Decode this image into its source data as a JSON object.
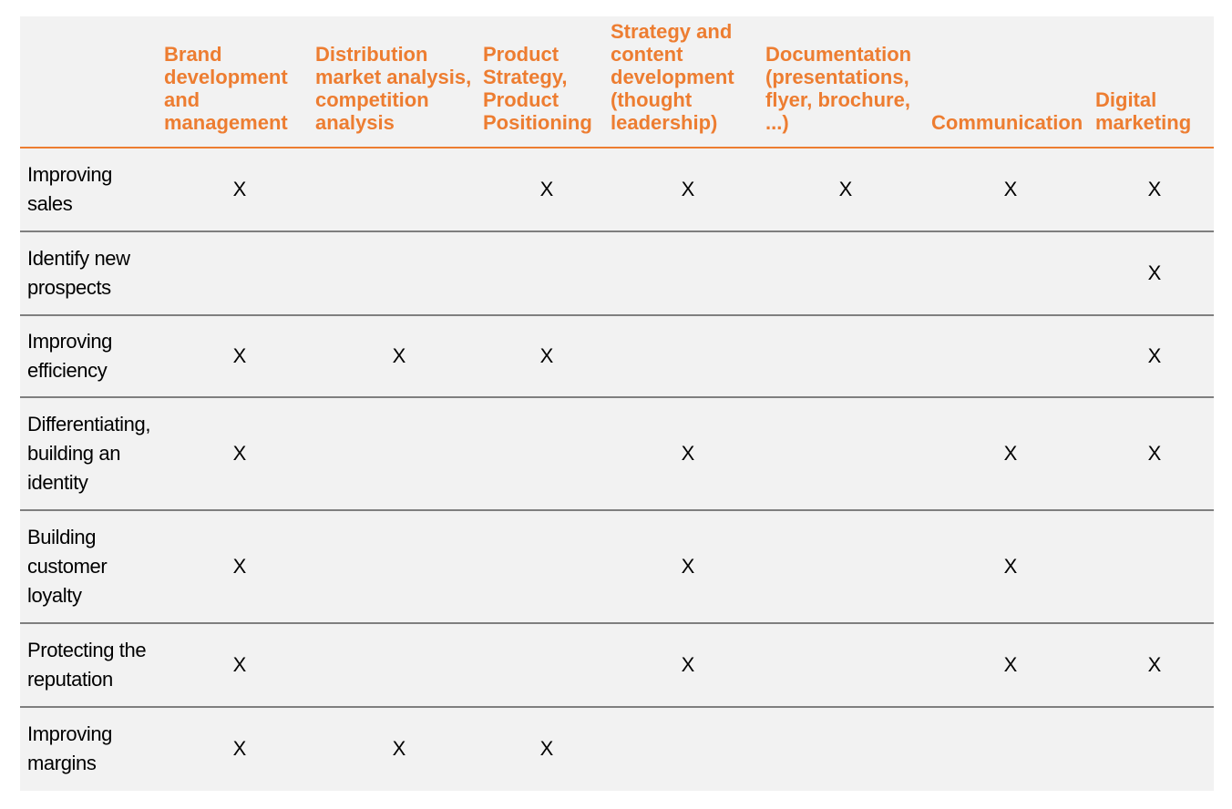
{
  "table": {
    "columns": [
      "Brand\ndevelopment\nand\nmanagement",
      "Distribution\nmarket analysis,\ncompetition\nanalysis",
      "Product\nStrategy,\nProduct\nPositioning",
      "Strategy and\ncontent\ndevelopment\n(thought\nleadership)",
      "Documentation\n(presentations,\nflyer, brochure,\n...)",
      "Communication",
      "Digital\nmarketing"
    ],
    "rows": [
      {
        "label": "Improving\nsales",
        "cells": [
          "X",
          "",
          "X",
          "X",
          "X",
          "X",
          "X"
        ]
      },
      {
        "label": "Identify new\nprospects",
        "cells": [
          "",
          "",
          "",
          "",
          "",
          "",
          "X"
        ]
      },
      {
        "label": "Improving\nefficiency",
        "cells": [
          "X",
          "X",
          "X",
          "",
          "",
          "",
          "X"
        ]
      },
      {
        "label": "Differentiating,\nbuilding an\nidentity",
        "cells": [
          "X",
          "",
          "",
          "X",
          "",
          "X",
          "X"
        ]
      },
      {
        "label": "Building\ncustomer\nloyalty",
        "cells": [
          "X",
          "",
          "",
          "X",
          "",
          "X",
          ""
        ]
      },
      {
        "label": "Protecting the\nreputation",
        "cells": [
          "X",
          "",
          "",
          "X",
          "",
          "X",
          "X"
        ]
      },
      {
        "label": "Improving\nmargins",
        "cells": [
          "X",
          "X",
          "X",
          "",
          "",
          "",
          ""
        ]
      }
    ]
  },
  "colors": {
    "header_text": "#ed7d31",
    "header_rule": "#ed7d31",
    "row_rule": "#7f7f7f",
    "background": "#f2f2f2"
  }
}
